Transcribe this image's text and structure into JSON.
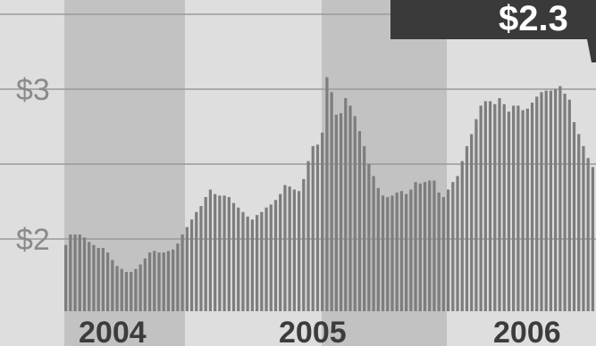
{
  "callout": {
    "label": "$2.3"
  },
  "colors": {
    "background": "#d6d6d6",
    "band_dark": "#c2c2c2",
    "band_light": "#dedede",
    "bar": "#7d7d7d",
    "grid": "#9a9a9a",
    "axis_text": "#8a8a8a",
    "year_text": "#3c3c3c",
    "callout_bg": "#3a3a3a",
    "callout_text": "#ffffff"
  },
  "chart_data": {
    "type": "bar",
    "title": "",
    "xlabel": "",
    "ylabel": "",
    "ylim": [
      1.5,
      3.5
    ],
    "grid": true,
    "y_ticks": [
      {
        "value": 3,
        "label": "$3"
      },
      {
        "value": 2,
        "label": "$2"
      }
    ],
    "x_ticks": [
      "2004",
      "2005",
      "2006"
    ],
    "series": [
      {
        "values": [
          1.96,
          2.03,
          2.03,
          2.03,
          2.01,
          1.98,
          1.96,
          1.94,
          1.94,
          1.91,
          1.86,
          1.82,
          1.8,
          1.78,
          1.78,
          1.8,
          1.83,
          1.87,
          1.91,
          1.92,
          1.91,
          1.91,
          1.92,
          1.93,
          1.97,
          2.03,
          2.08,
          2.13,
          2.18,
          2.22,
          2.28,
          2.33,
          2.3,
          2.29,
          2.29,
          2.28,
          2.24,
          2.21,
          2.18,
          2.15,
          2.13,
          2.16,
          2.18,
          2.21,
          2.23,
          2.26,
          2.3,
          2.36,
          2.35,
          2.33,
          2.32,
          2.4,
          2.52,
          2.62,
          2.63,
          2.71,
          3.08,
          2.98,
          2.83,
          2.84,
          2.94,
          2.89,
          2.82,
          2.72,
          2.62,
          2.5,
          2.42,
          2.34,
          2.29,
          2.28,
          2.29,
          2.31,
          2.32,
          2.3,
          2.33,
          2.38,
          2.37,
          2.38,
          2.39,
          2.39,
          2.31,
          2.28,
          2.33,
          2.38,
          2.42,
          2.52,
          2.62,
          2.7,
          2.8,
          2.89,
          2.92,
          2.92,
          2.9,
          2.94,
          2.9,
          2.85,
          2.89,
          2.89,
          2.86,
          2.87,
          2.91,
          2.95,
          2.98,
          2.99,
          2.99,
          3.0,
          3.02,
          2.97,
          2.93,
          2.78,
          2.7,
          2.62,
          2.54,
          2.48
        ]
      }
    ]
  }
}
